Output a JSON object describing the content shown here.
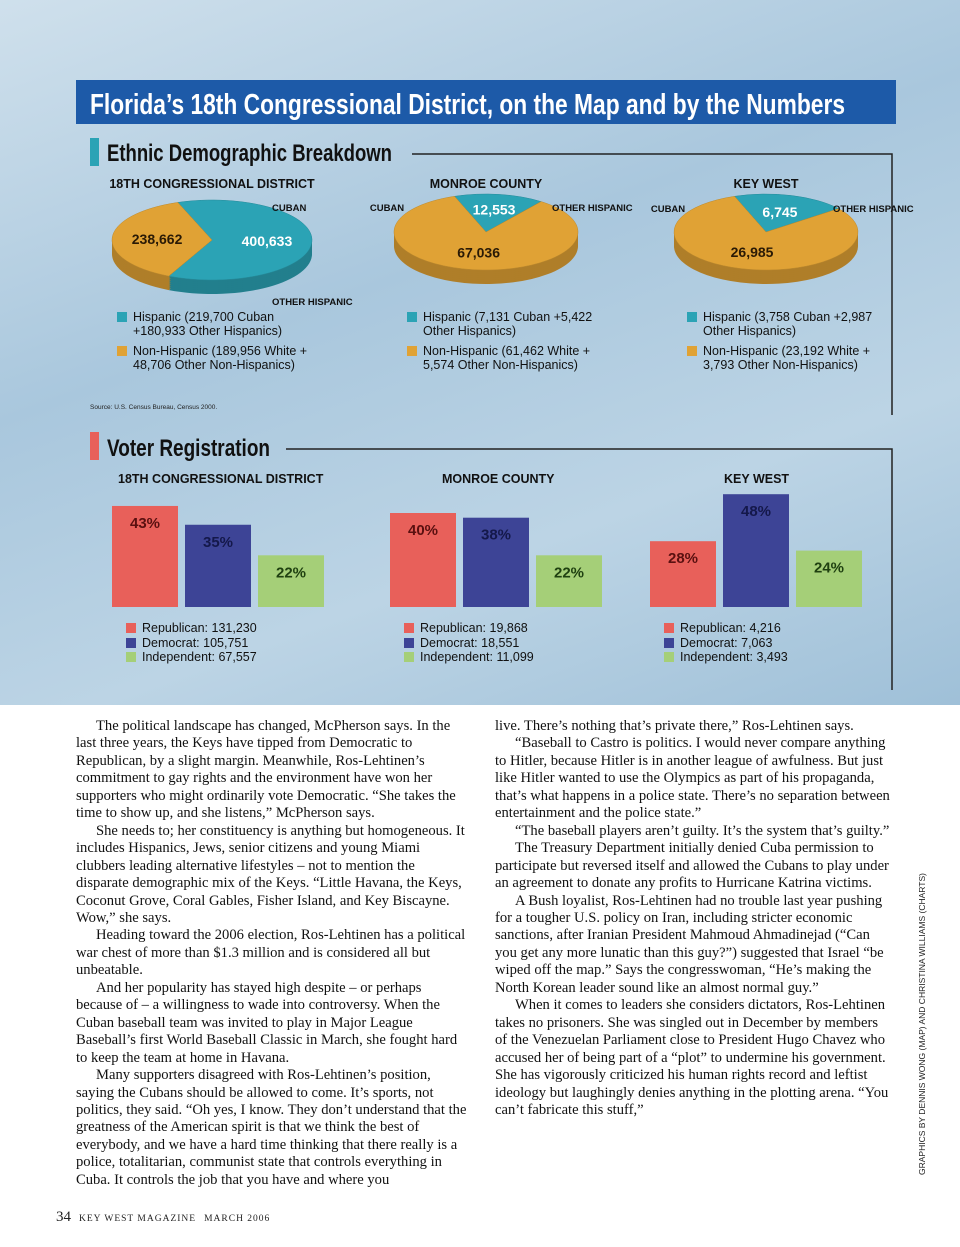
{
  "graphic": {
    "title": "Florida’s 18th Congressional District, on the Map and by the Numbers",
    "ethnic": {
      "heading": "Ethnic Demographic Breakdown",
      "source": "Source: U.S. Census Bureau, Census 2000.",
      "charts": [
        {
          "type": "pie",
          "title": "18TH CONGRESSIONAL DISTRICT",
          "labels": [
            "CUBAN",
            "OTHER HISPANIC"
          ],
          "categories": [
            "Hispanic",
            "Non-Hispanic"
          ],
          "values": [
            400633,
            238662
          ],
          "value_labels": [
            "400,633",
            "238,662"
          ],
          "colors": [
            "#2ba3b5",
            "#e0a235"
          ],
          "legend": [
            "Hispanic (219,700 Cuban +180,933 Other Hispanics)",
            "Non-Hispanic (189,956 White + 48,706 Other Non-Hispanics)"
          ]
        },
        {
          "type": "pie",
          "title": "MONROE COUNTY",
          "labels": [
            "CUBAN",
            "OTHER HISPANIC"
          ],
          "categories": [
            "Hispanic",
            "Non-Hispanic"
          ],
          "values": [
            12553,
            67036
          ],
          "value_labels": [
            "12,553",
            "67,036"
          ],
          "colors": [
            "#2ba3b5",
            "#e0a235"
          ],
          "legend": [
            "Hispanic (7,131 Cuban +5,422 Other Hispanics)",
            "Non-Hispanic (61,462 White + 5,574 Other Non-Hispanics)"
          ]
        },
        {
          "type": "pie",
          "title": "KEY WEST",
          "labels": [
            "CUBAN",
            "OTHER HISPANIC"
          ],
          "categories": [
            "Hispanic",
            "Non-Hispanic"
          ],
          "values": [
            6745,
            26985
          ],
          "value_labels": [
            "6,745",
            "26,985"
          ],
          "colors": [
            "#2ba3b5",
            "#e0a235"
          ],
          "legend": [
            "Hispanic (3,758 Cuban +2,987 Other Hispanics)",
            "Non-Hispanic (23,192 White + 3,793 Other Non-Hispanics)"
          ]
        }
      ]
    },
    "voter": {
      "heading": "Voter Registration",
      "charts": [
        {
          "type": "bar",
          "title": "18TH CONGRESSIONAL DISTRICT",
          "values": [
            43,
            35,
            22
          ],
          "value_labels": [
            "43%",
            "35%",
            "22%"
          ],
          "colors": [
            "#e8605a",
            "#3d4496",
            "#a5cf78"
          ],
          "legend": [
            "Republican: 131,230",
            "Democrat: 105,751",
            "Independent: 67,557"
          ]
        },
        {
          "type": "bar",
          "title": "MONROE COUNTY",
          "values": [
            40,
            38,
            22
          ],
          "value_labels": [
            "40%",
            "38%",
            "22%"
          ],
          "colors": [
            "#e8605a",
            "#3d4496",
            "#a5cf78"
          ],
          "legend": [
            "Republican: 19,868",
            "Democrat: 18,551",
            "Independent: 11,099"
          ]
        },
        {
          "type": "bar",
          "title": "KEY WEST",
          "values": [
            28,
            48,
            24
          ],
          "value_labels": [
            "28%",
            "48%",
            "24%"
          ],
          "colors": [
            "#e8605a",
            "#3d4496",
            "#a5cf78"
          ],
          "legend": [
            "Republican: 4,216",
            "Democrat: 7,063",
            "Independent: 3,493"
          ]
        }
      ]
    }
  },
  "article": {
    "columns": [
      [
        "The political landscape has changed, McPherson says. In the last three years, the Keys have tipped from Democratic to Republican, by a slight margin. Meanwhile, Ros-Lehtinen’s commitment to gay rights and the environment have won her supporters who might ordinarily vote Democratic. “She takes the time to show up, and she listens,” McPherson says.",
        "She needs to; her constituency is anything but homogeneous. It includes Hispanics, Jews, senior citizens and young Miami clubbers leading alternative lifestyles – not to mention the disparate demographic mix of the Keys. “Little Havana, the Keys, Coconut Grove, Coral Gables, Fisher Island, and Key Biscayne. Wow,” she says.",
        "Heading toward the 2006 election, Ros-Lehtinen has a political war chest of more than $1.3 million and is considered all but unbeatable.",
        "And her popularity has stayed high despite – or perhaps because of – a willingness to wade into controversy. When the Cuban baseball team was invited to play in Major League Baseball’s first World Baseball Classic in March, she fought hard to keep the team at home in Havana.",
        "Many supporters disagreed with Ros-Lehtinen’s position, saying the Cubans should be allowed to come. It’s sports, not politics, they said. “Oh yes, I know. They don’t understand that the greatness of the American spirit is that we think the best of everybody, and we have a hard time thinking that there really is a police, totalitarian, communist state that controls everything in Cuba. It controls the job that you have and where you"
      ],
      [
        "live. There’s nothing that’s private there,” Ros-Lehtinen says.",
        "“Baseball to Castro is politics. I would never compare anything to Hitler, because Hitler is in another league of awfulness. But just like Hitler wanted to use the Olympics as part of his propaganda, that’s what happens in a police state. There’s no separation between entertainment and the police state.”",
        "“The baseball players aren’t guilty. It’s the system that’s guilty.”",
        "The Treasury Department initially denied Cuba permission to participate but reversed itself and allowed the Cubans to play under an agreement to donate any profits to Hurricane Katrina victims.",
        "A Bush loyalist, Ros-Lehtinen had no trouble last year pushing for a tougher U.S. policy on Iran, including stricter economic sanctions, after Iranian President Mahmoud Ahmadinejad (“Can you get any more lunatic than this guy?”) suggested that Israel “be wiped off the map.” Says the congresswoman, “He’s making the North Korean leader sound like an almost normal guy.”",
        "When it comes to leaders she considers dictators, Ros-Lehtinen takes no prisoners. She was singled out in December by members of the Venezuelan Parliament close to President Hugo Chavez who accused her of being part of a “plot” to undermine his government. She has vigorously criticized his human rights record and leftist ideology but laughingly denies anything in the plotting arena. “You can’t fabricate this stuff,”"
      ]
    ]
  },
  "credit": "GRAPHICS BY DENNIS WONG (MAP) AND CHRISTINA WILLIAMS (CHARTS)",
  "footer": {
    "page": "34",
    "publication": "KEY WEST MAGAZINE",
    "issue": "MARCH 2006"
  }
}
